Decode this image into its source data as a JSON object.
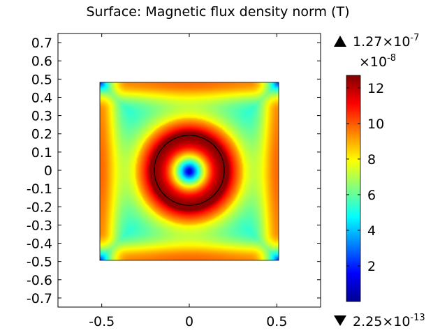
{
  "chart_data": {
    "type": "heatmap",
    "title": "Surface: Magnetic flux density norm (T)",
    "xlabel": "",
    "ylabel": "",
    "xlim": [
      -0.75,
      0.75
    ],
    "ylim": [
      -0.75,
      0.75
    ],
    "x_ticks": [
      "-0.5",
      "0",
      "0.5"
    ],
    "y_ticks": [
      "0.7",
      "0.6",
      "0.5",
      "0.4",
      "0.3",
      "0.2",
      "0.1",
      "0",
      "-0.1",
      "-0.2",
      "-0.3",
      "-0.4",
      "-0.5",
      "-0.6",
      "-0.7"
    ],
    "domain": {
      "x": [
        -0.5,
        0.5
      ],
      "y": [
        -0.5,
        0.5
      ]
    },
    "circle": {
      "cx": 0,
      "cy": 0,
      "r": 0.2
    },
    "colorbar": {
      "multiplier": "×10",
      "multiplier_exp": "-8",
      "ticks": [
        "12",
        "10",
        "8",
        "6",
        "4",
        "2"
      ],
      "range": [
        0,
        12.7
      ],
      "colormap": "jet"
    },
    "max_marker": {
      "mantissa": "1.27",
      "times": "×10",
      "exp": "-7"
    },
    "min_marker": {
      "mantissa": "2.25",
      "times": "×10",
      "exp": "-13"
    },
    "grid": false
  }
}
